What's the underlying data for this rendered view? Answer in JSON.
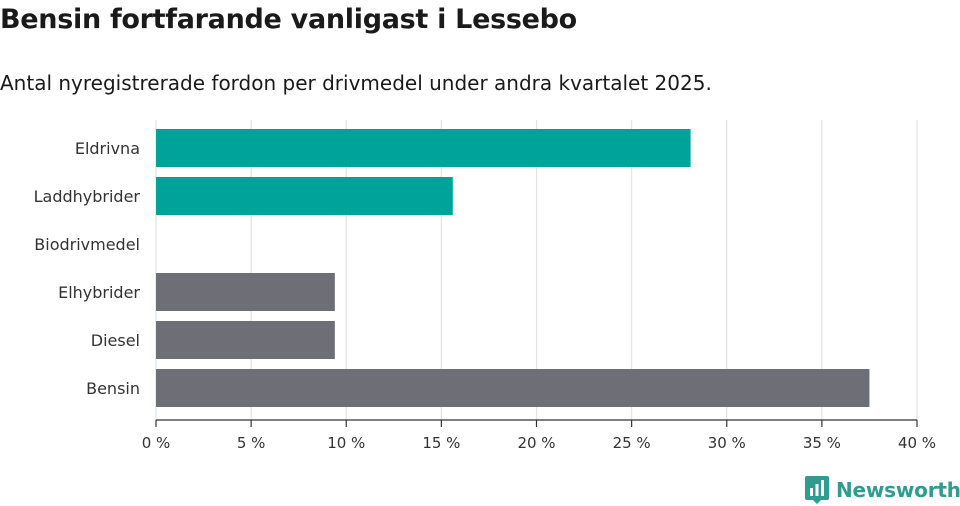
{
  "header": {
    "title": "Bensin fortfarande vanligast i Lessebo",
    "subtitle": "Antal nyregistrerade fordon per drivmedel under andra kvartalet 2025."
  },
  "brand": {
    "name": "Newsworthy",
    "color": "#2f9c8f",
    "icon": "bar-chart-badge-icon"
  },
  "colors": {
    "highlight": "#00a39a",
    "default": "#6e6e76",
    "grid": "#e3e3e3",
    "axis": "#333333"
  },
  "chart_data": {
    "type": "bar",
    "orientation": "horizontal",
    "categories": [
      "Eldrivna",
      "Laddhybrider",
      "Biodrivmedel",
      "Elhybrider",
      "Diesel",
      "Bensin"
    ],
    "values": [
      28.1,
      15.6,
      0,
      9.4,
      9.4,
      37.5
    ],
    "bar_colors": [
      "#00a39a",
      "#00a39a",
      "#6e6e76",
      "#6e6e76",
      "#6e6e76",
      "#6e6e76"
    ],
    "xlim": [
      0,
      40
    ],
    "xticks": [
      "0 %",
      "5 %",
      "10 %",
      "15 %",
      "20 %",
      "25 %",
      "30 %",
      "35 %",
      "40 %"
    ],
    "xlabel": "",
    "ylabel": "",
    "grid": true,
    "legend": "none"
  }
}
